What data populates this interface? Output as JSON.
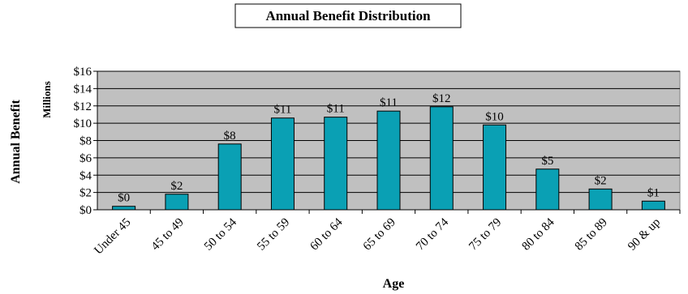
{
  "chart_data": {
    "type": "bar",
    "title": "Annual Benefit Distribution",
    "xlabel": "Age",
    "ylabel": "Annual Benefit",
    "units_label": "Millions",
    "categories": [
      "Under 45",
      "45 to 49",
      "50 to 54",
      "55 to 59",
      "60 to 64",
      "65 to 69",
      "70 to 74",
      "75 to 79",
      "80 to 84",
      "85 to 89",
      "90 & up"
    ],
    "values": [
      0.4,
      1.8,
      7.6,
      10.6,
      10.7,
      11.4,
      11.9,
      9.8,
      4.7,
      2.4,
      1.0
    ],
    "data_labels": [
      "$0",
      "$2",
      "$8",
      "$11",
      "$11",
      "$11",
      "$12",
      "$10",
      "$5",
      "$2",
      "$1"
    ],
    "ylim": [
      0,
      16
    ],
    "yticks": [
      0,
      2,
      4,
      6,
      8,
      10,
      12,
      14,
      16
    ],
    "ytick_labels": [
      "$0",
      "$2",
      "$4",
      "$6",
      "$8",
      "$10",
      "$12",
      "$14",
      "$16"
    ],
    "grid": true,
    "colors": {
      "bar": "#0aa0b4",
      "plot_background": "#c0c0c0",
      "grid": "#000000"
    }
  }
}
